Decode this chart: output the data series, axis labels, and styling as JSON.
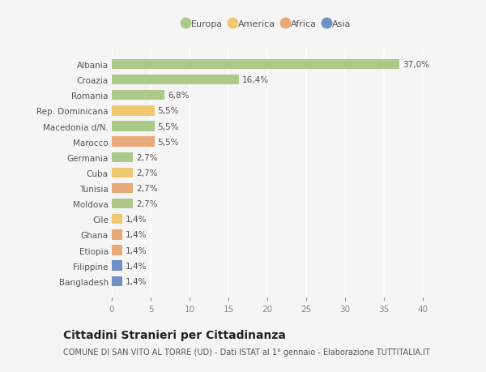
{
  "countries": [
    "Albania",
    "Croazia",
    "Romania",
    "Rep. Dominicana",
    "Macedonia d/N.",
    "Marocco",
    "Germania",
    "Cuba",
    "Tunisia",
    "Moldova",
    "Cile",
    "Ghana",
    "Etiopia",
    "Filippine",
    "Bangladesh"
  ],
  "values": [
    37.0,
    16.4,
    6.8,
    5.5,
    5.5,
    5.5,
    2.7,
    2.7,
    2.7,
    2.7,
    1.4,
    1.4,
    1.4,
    1.4,
    1.4
  ],
  "labels": [
    "37,0%",
    "16,4%",
    "6,8%",
    "5,5%",
    "5,5%",
    "5,5%",
    "2,7%",
    "2,7%",
    "2,7%",
    "2,7%",
    "1,4%",
    "1,4%",
    "1,4%",
    "1,4%",
    "1,4%"
  ],
  "categories": [
    "Europa",
    "America",
    "Africa",
    "Asia"
  ],
  "bar_colors": [
    "#adc98a",
    "#adc98a",
    "#adc98a",
    "#f0c870",
    "#adc98a",
    "#e8a878",
    "#adc98a",
    "#f0c870",
    "#e8a878",
    "#adc98a",
    "#f0c870",
    "#e8a878",
    "#e8a878",
    "#7090c8",
    "#7090c8"
  ],
  "legend_colors": [
    "#adc98a",
    "#f0c870",
    "#e8a878",
    "#7090c8"
  ],
  "xlim": [
    0,
    40
  ],
  "xticks": [
    0,
    5,
    10,
    15,
    20,
    25,
    30,
    35,
    40
  ],
  "title": "Cittadini Stranieri per Cittadinanza",
  "subtitle": "COMUNE DI SAN VITO AL TORRE (UD) - Dati ISTAT al 1° gennaio - Elaborazione TUTTITALIA.IT",
  "bg_color": "#f5f5f5",
  "grid_color": "#ffffff",
  "bar_height": 0.65,
  "label_fontsize": 7.5,
  "tick_fontsize": 7.5,
  "title_fontsize": 10,
  "subtitle_fontsize": 7,
  "legend_fontsize": 8
}
